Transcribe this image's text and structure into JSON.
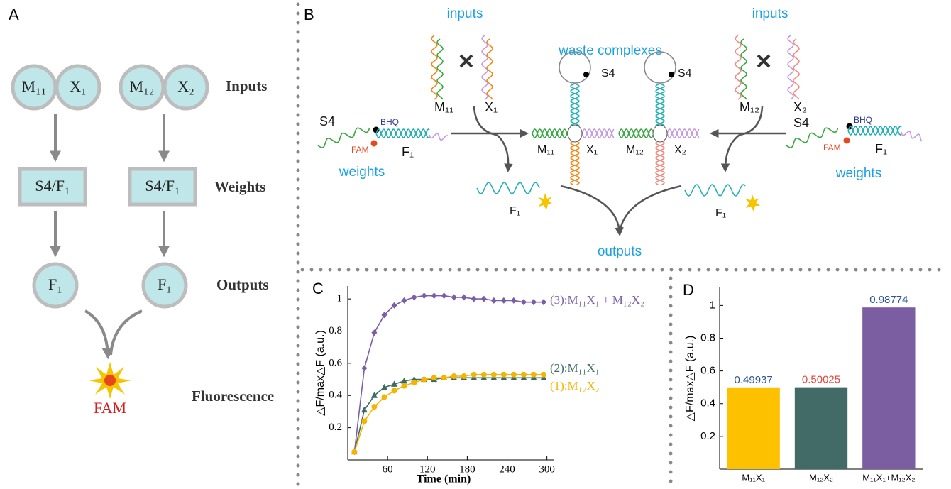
{
  "panel_a": {
    "label": "A",
    "rows": [
      "Inputs",
      "Weights",
      "Outputs",
      "Fluorescence"
    ],
    "inputs": [
      "M₁₁",
      "X₁",
      "M₁₂",
      "X₂"
    ],
    "weights": [
      "S4/F₁",
      "S4/F₁"
    ],
    "outputs": [
      "F₁",
      "F₁"
    ],
    "signal": "FAM"
  },
  "panel_b": {
    "label": "B",
    "texts": [
      "inputs",
      "inputs",
      "waste complexes",
      "S4",
      "S4",
      "M₁₁",
      "X₁",
      "M₁₂",
      "X₂",
      "S4",
      "BHQ",
      "FAM",
      "F₁",
      "weights",
      "S4",
      "BHQ",
      "FAM",
      "F₁",
      "weights",
      "M₁₁",
      "X₁",
      "M₁₂",
      "X₂",
      "F₁",
      "F₁",
      "outputs"
    ]
  },
  "chart_data": [
    {
      "type": "line",
      "label": "C",
      "xlabel": "Time (min)",
      "ylabel": "△F/max△F (a.u.)",
      "x": [
        10,
        25,
        40,
        55,
        70,
        85,
        100,
        115,
        130,
        145,
        160,
        175,
        190,
        205,
        220,
        235,
        250,
        265,
        280,
        295
      ],
      "xlim": [
        0,
        310
      ],
      "xticks": [
        60,
        120,
        180,
        240,
        300
      ],
      "ylim": [
        0,
        1.08
      ],
      "yticks": [
        0.2,
        0.4,
        0.6,
        0.8,
        1
      ],
      "series": [
        {
          "name": "(3):M₁₁X₁ + M₁₂X₂",
          "color": "#7b5ea7",
          "marker": "diamond",
          "values": [
            0.05,
            0.57,
            0.79,
            0.9,
            0.96,
            0.99,
            1.01,
            1.02,
            1.02,
            1.02,
            1.01,
            1.01,
            1.0,
            1.0,
            0.99,
            0.99,
            0.99,
            0.98,
            0.98,
            0.98
          ]
        },
        {
          "name": "(2):M₁₁X₁",
          "color": "#3d6b63",
          "marker": "triangle",
          "values": [
            0.05,
            0.31,
            0.4,
            0.45,
            0.47,
            0.49,
            0.5,
            0.5,
            0.5,
            0.51,
            0.51,
            0.51,
            0.51,
            0.51,
            0.51,
            0.51,
            0.51,
            0.51,
            0.51,
            0.51
          ]
        },
        {
          "name": "(1):M₁₂X₂",
          "color": "#f5b400",
          "marker": "circle",
          "values": [
            0.05,
            0.24,
            0.33,
            0.39,
            0.43,
            0.46,
            0.48,
            0.5,
            0.51,
            0.51,
            0.52,
            0.52,
            0.53,
            0.53,
            0.53,
            0.53,
            0.53,
            0.53,
            0.53,
            0.53
          ]
        }
      ]
    },
    {
      "type": "bar",
      "label": "D",
      "ylabel": "△F/max△F (a.u.)",
      "categories": [
        "M₁₁X₁",
        "M₁₂X₂",
        "M₁₁X₁+M₁₂X₂"
      ],
      "values": [
        0.49937,
        0.50025,
        0.98774
      ],
      "colors": [
        "#fdc100",
        "#426a66",
        "#7b5ea2"
      ],
      "label_colors": [
        "#2f5597",
        "#e8443a",
        "#2f5597"
      ],
      "ylim": [
        0,
        1.11
      ],
      "yticks": [
        0.2,
        0.4,
        0.6,
        0.8,
        1
      ]
    }
  ]
}
